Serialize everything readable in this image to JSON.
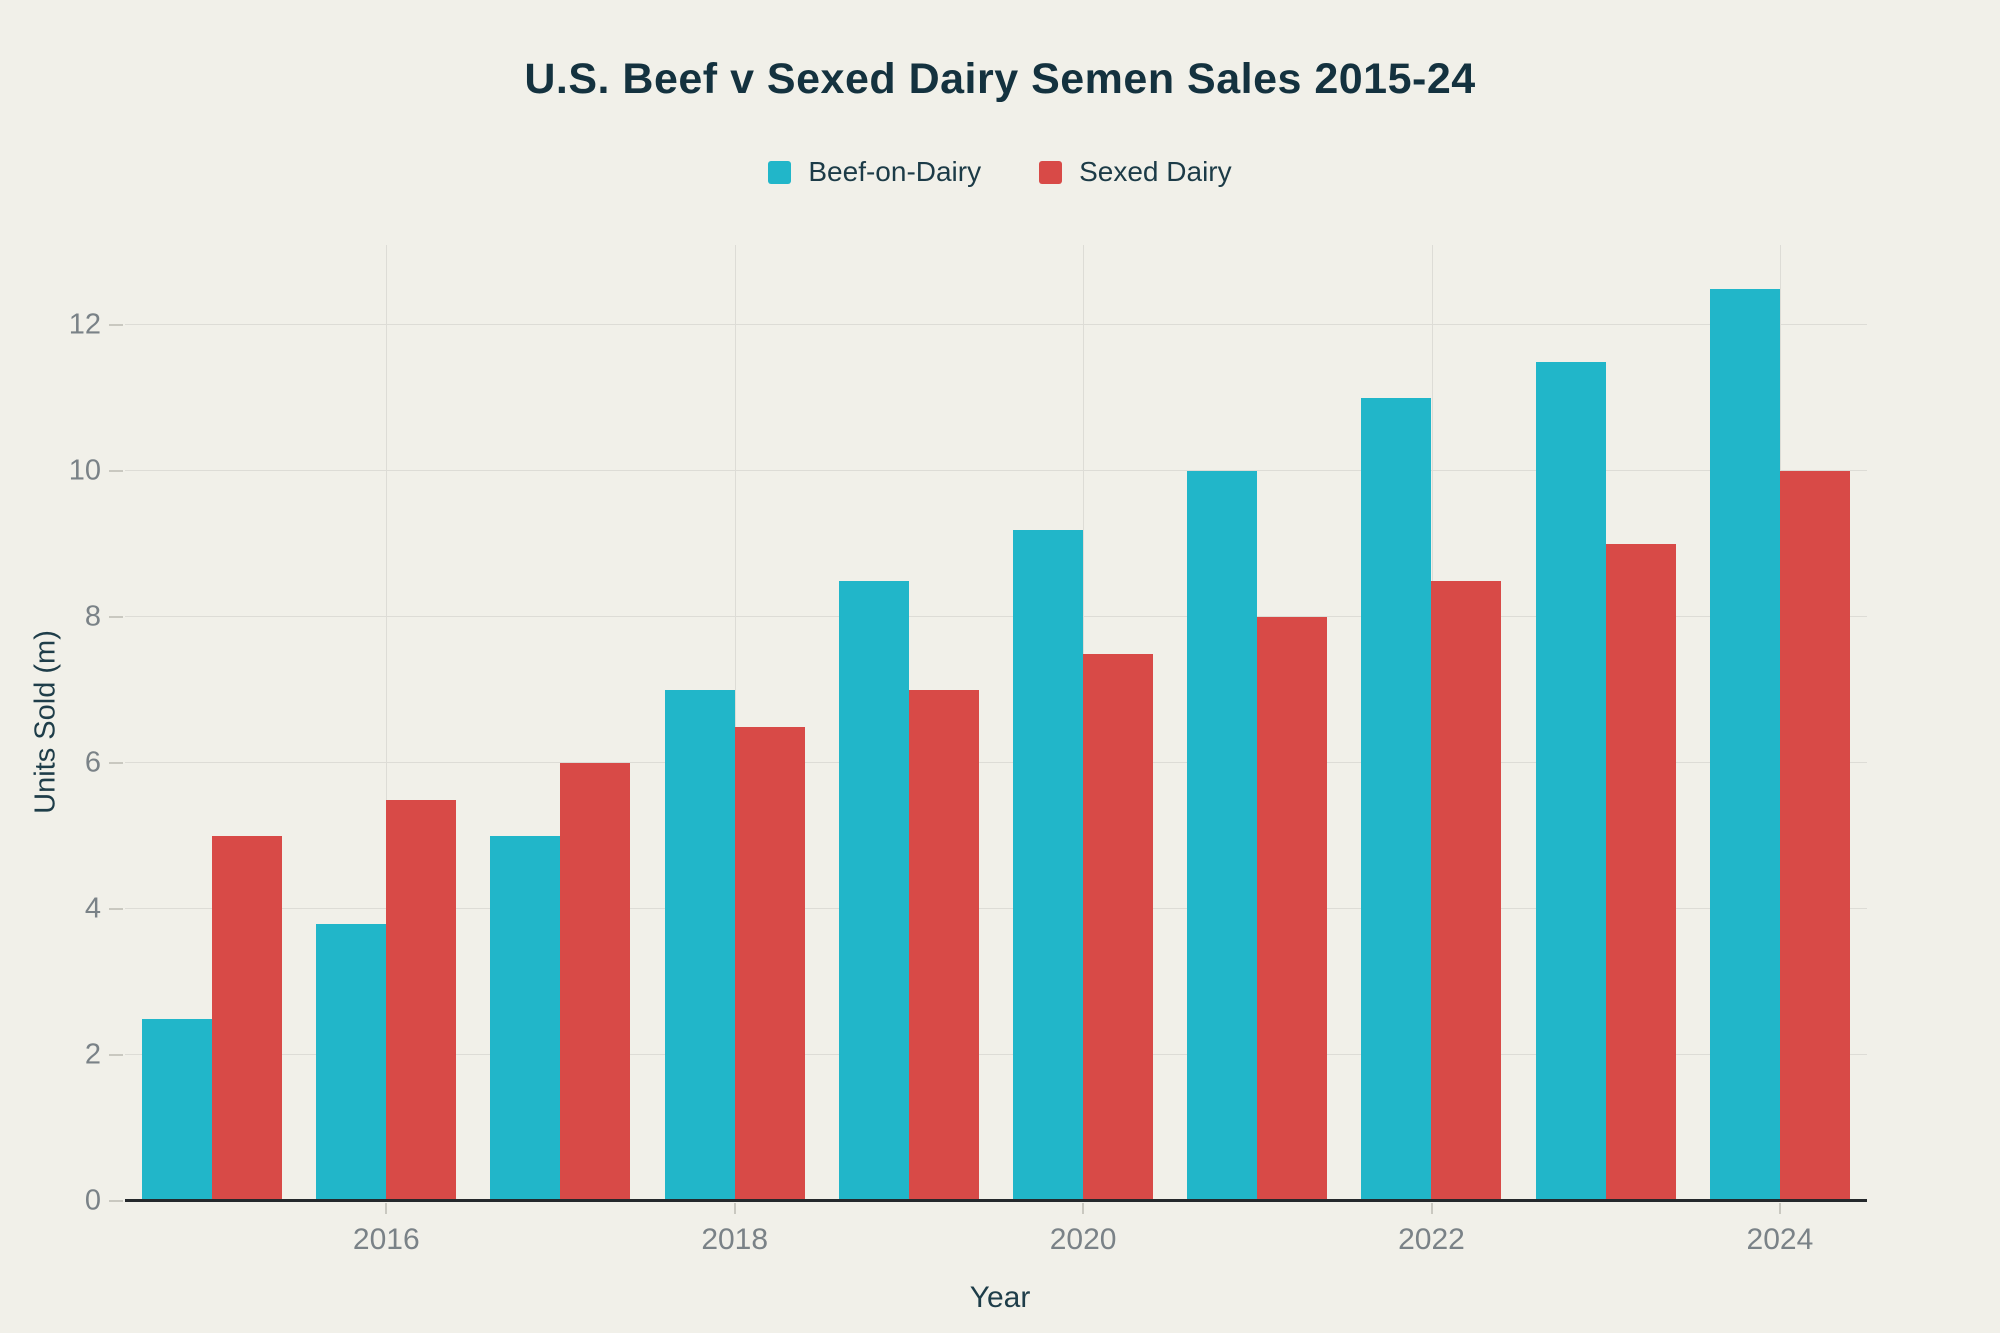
{
  "colors": {
    "background": "#f1f0e9",
    "title_text": "#14323f",
    "axis_title_text": "#1e3d49",
    "tick_text": "#7a8287",
    "gridline": "#dddcd6",
    "tick_mark": "#c9c8c0",
    "axis_line": "#25292c",
    "beef_on_dairy": "#21b6c9",
    "sexed_dairy": "#d84a47"
  },
  "chart_data": {
    "type": "bar",
    "title": "U.S. Beef v Sexed Dairy Semen Sales 2015-24",
    "xlabel": "Year",
    "ylabel": "Units Sold (m)",
    "categories": [
      "2015",
      "2016",
      "2017",
      "2018",
      "2019",
      "2020",
      "2021",
      "2022",
      "2023",
      "2024"
    ],
    "series": [
      {
        "name": "Beef-on-Dairy",
        "color": "#21b6c9",
        "values": [
          2.5,
          3.8,
          5.0,
          7.0,
          8.5,
          9.2,
          10.0,
          11.0,
          11.5,
          12.5
        ]
      },
      {
        "name": "Sexed Dairy",
        "color": "#d84a47",
        "values": [
          5.0,
          5.5,
          6.0,
          6.5,
          7.0,
          7.5,
          8.0,
          8.5,
          9.0,
          10.0
        ]
      }
    ],
    "ylim": [
      0,
      13.1
    ],
    "yticks": [
      0,
      2,
      4,
      6,
      8,
      10,
      12
    ],
    "xticks_labeled": [
      "2016",
      "2018",
      "2020",
      "2022",
      "2024"
    ],
    "grid": "on",
    "legend_position": "top"
  }
}
